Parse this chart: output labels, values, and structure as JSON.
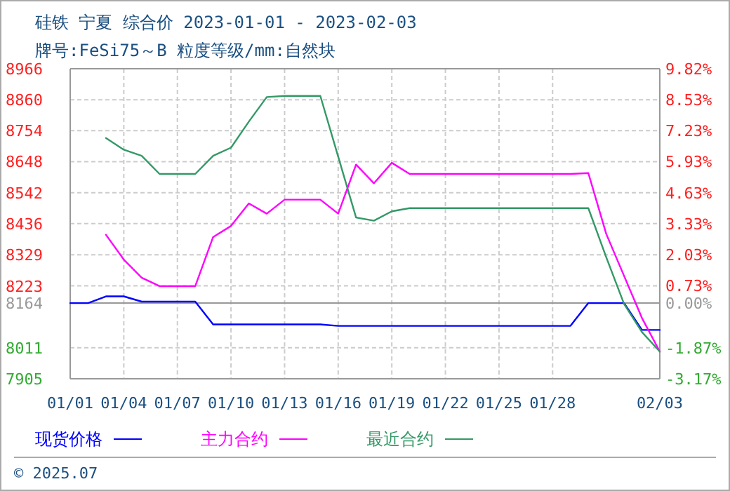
{
  "chart_data": {
    "type": "line",
    "title": "硅铁 宁夏 综合价 2023-01-01 - 2023-02-03",
    "subtitle": "牌号:FeSi75～B 粒度等级/mm:自然块",
    "xlim": [
      "2023-01-01",
      "2023-02-03"
    ],
    "xticks": [
      {
        "value": "2023-01-01",
        "label": "01/01"
      },
      {
        "value": "2023-01-04",
        "label": "01/04"
      },
      {
        "value": "2023-01-07",
        "label": "01/07"
      },
      {
        "value": "2023-01-10",
        "label": "01/10"
      },
      {
        "value": "2023-01-13",
        "label": "01/13"
      },
      {
        "value": "2023-01-16",
        "label": "01/16"
      },
      {
        "value": "2023-01-19",
        "label": "01/19"
      },
      {
        "value": "2023-01-22",
        "label": "01/22"
      },
      {
        "value": "2023-01-25",
        "label": "01/25"
      },
      {
        "value": "2023-01-28",
        "label": "01/28"
      },
      {
        "value": "2023-02-03",
        "label": "02/03"
      }
    ],
    "ylim": [
      7905,
      8966
    ],
    "yticks": [
      7905,
      8011,
      8164,
      8223,
      8329,
      8436,
      8542,
      8648,
      8754,
      8860,
      8966
    ],
    "y2lim": [
      -3.17,
      9.82
    ],
    "y2ticks": [
      {
        "value": -3.17,
        "label": "-3.17%"
      },
      {
        "value": -1.87,
        "label": "-1.87%"
      },
      {
        "value": 0,
        "label": "0.00%"
      },
      {
        "value": 0.73,
        "label": "0.73%"
      },
      {
        "value": 2.03,
        "label": "2.03%"
      },
      {
        "value": 3.33,
        "label": "3.33%"
      },
      {
        "value": 4.63,
        "label": "4.63%"
      },
      {
        "value": 5.93,
        "label": "5.93%"
      },
      {
        "value": 7.23,
        "label": "7.23%"
      },
      {
        "value": 8.53,
        "label": "8.53%"
      },
      {
        "value": 9.82,
        "label": "9.82%"
      }
    ],
    "ref_lines": [
      {
        "axis": "y",
        "value": 8164,
        "color": "#999999"
      }
    ],
    "grid": true,
    "legend": "bottom",
    "marker": "none",
    "line_style": "solid",
    "series": [
      {
        "name": "现货价格",
        "color": "#0000ff",
        "x": [
          "2023-01-01",
          "2023-01-02",
          "2023-01-03",
          "2023-01-04",
          "2023-01-05",
          "2023-01-08",
          "2023-01-09",
          "2023-01-15",
          "2023-01-16",
          "2023-01-29",
          "2023-01-30",
          "2023-02-01",
          "2023-02-02",
          "2023-02-03"
        ],
        "values": [
          8164,
          8164,
          8187,
          8187,
          8169,
          8169,
          8091,
          8091,
          8086,
          8086,
          8164,
          8164,
          8072,
          8072
        ]
      },
      {
        "name": "主力合约",
        "color": "#ff00ff",
        "x": [
          "2023-01-03",
          "2023-01-04",
          "2023-01-05",
          "2023-01-06",
          "2023-01-08",
          "2023-01-09",
          "2023-01-10",
          "2023-01-11",
          "2023-01-12",
          "2023-01-13",
          "2023-01-15",
          "2023-01-16",
          "2023-01-17",
          "2023-01-18",
          "2023-01-19",
          "2023-01-20",
          "2023-01-29",
          "2023-01-30",
          "2023-01-31",
          "2023-02-01",
          "2023-02-02",
          "2023-02-03"
        ],
        "values": [
          8398,
          8313,
          8251,
          8222,
          8222,
          8390,
          8428,
          8505,
          8470,
          8518,
          8518,
          8470,
          8638,
          8574,
          8644,
          8606,
          8606,
          8609,
          8401,
          8257,
          8113,
          7998
        ]
      },
      {
        "name": "最近合约",
        "color": "#339966",
        "x": [
          "2023-01-03",
          "2023-01-04",
          "2023-01-05",
          "2023-01-06",
          "2023-01-08",
          "2023-01-09",
          "2023-01-10",
          "2023-01-11",
          "2023-01-12",
          "2023-01-13",
          "2023-01-15",
          "2023-01-16",
          "2023-01-17",
          "2023-01-18",
          "2023-01-19",
          "2023-01-20",
          "2023-01-29",
          "2023-01-30",
          "2023-01-31",
          "2023-02-01",
          "2023-02-02",
          "2023-02-03"
        ],
        "values": [
          8729,
          8689,
          8668,
          8606,
          8606,
          8668,
          8696,
          8785,
          8869,
          8873,
          8873,
          8665,
          8457,
          8446,
          8478,
          8489,
          8489,
          8489,
          8321,
          8161,
          8065,
          7998
        ]
      }
    ],
    "annotations": [
      "© 2025.07"
    ]
  }
}
